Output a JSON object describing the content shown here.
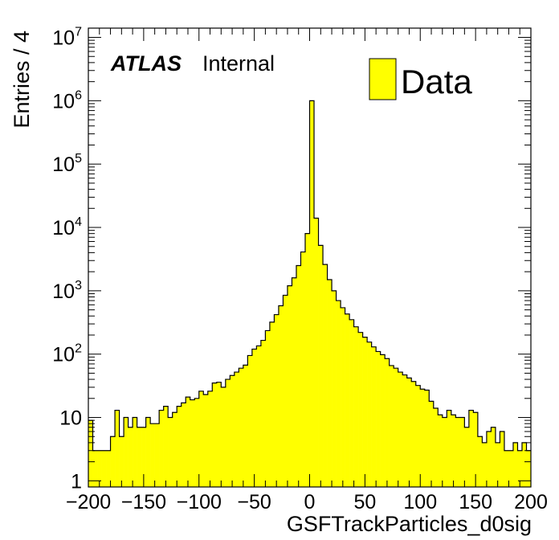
{
  "chart_data": {
    "type": "bar",
    "subtype": "histogram-step",
    "y_scale": "log",
    "xlim": [
      -200,
      200
    ],
    "ylim": [
      0.8,
      14000000
    ],
    "bin_width": 4,
    "xlabel": "GSFTrackParticles_d0sig",
    "ylabel": "Entries / 4",
    "experiment": "ATLAS",
    "experiment_status": "Internal",
    "legend": {
      "position": "top-right",
      "entries": [
        {
          "name": "Data",
          "color": "#ffff00"
        }
      ]
    },
    "fill_color": "#ffff00",
    "line_color": "#000000",
    "x_ticks": [
      -200,
      -150,
      -100,
      -50,
      0,
      50,
      100,
      150,
      200
    ],
    "x_tick_labels": [
      "−200",
      "−150",
      "−100",
      "−50",
      "0",
      "50",
      "100",
      "150",
      "200"
    ],
    "y_ticks": [
      {
        "value": 1,
        "base": "1",
        "exp": ""
      },
      {
        "value": 10,
        "base": "10",
        "exp": ""
      },
      {
        "value": 100,
        "base": "10",
        "exp": "2"
      },
      {
        "value": 1000,
        "base": "10",
        "exp": "3"
      },
      {
        "value": 10000,
        "base": "10",
        "exp": "4"
      },
      {
        "value": 100000,
        "base": "10",
        "exp": "5"
      },
      {
        "value": 1000000,
        "base": "10",
        "exp": "6"
      },
      {
        "value": 10000000,
        "base": "10",
        "exp": "7"
      }
    ],
    "series": [
      {
        "name": "Data",
        "bin_lows": [
          -200,
          -196,
          -192,
          -188,
          -184,
          -180,
          -176,
          -172,
          -168,
          -164,
          -160,
          -156,
          -152,
          -148,
          -144,
          -140,
          -136,
          -132,
          -128,
          -124,
          -120,
          -116,
          -112,
          -108,
          -104,
          -100,
          -96,
          -92,
          -88,
          -84,
          -80,
          -76,
          -72,
          -68,
          -64,
          -60,
          -56,
          -52,
          -48,
          -44,
          -40,
          -36,
          -32,
          -28,
          -24,
          -20,
          -16,
          -12,
          -8,
          -4,
          0,
          4,
          8,
          12,
          16,
          20,
          24,
          28,
          32,
          36,
          40,
          44,
          48,
          52,
          56,
          60,
          64,
          68,
          72,
          76,
          80,
          84,
          88,
          92,
          96,
          100,
          104,
          108,
          112,
          116,
          120,
          124,
          128,
          132,
          136,
          140,
          144,
          148,
          152,
          156,
          160,
          164,
          168,
          172,
          176,
          180,
          184,
          188,
          192,
          196
        ],
        "values": [
          9,
          3,
          3,
          3,
          3,
          5,
          13,
          5,
          10,
          7,
          10,
          7,
          7,
          10,
          8,
          8,
          13,
          15,
          10,
          12,
          15,
          17,
          21,
          19,
          20,
          26,
          23,
          26,
          35,
          36,
          30,
          40,
          46,
          52,
          60,
          67,
          95,
          120,
          135,
          165,
          235,
          320,
          420,
          580,
          850,
          1200,
          1600,
          2500,
          4100,
          8000,
          1000000,
          14000,
          5200,
          2600,
          1500,
          1000,
          700,
          540,
          430,
          350,
          270,
          220,
          185,
          155,
          130,
          110,
          98,
          85,
          66,
          60,
          52,
          47,
          42,
          37,
          32,
          28,
          27,
          18,
          14,
          11,
          10,
          13,
          11,
          10,
          10,
          7,
          13,
          12,
          5,
          4,
          6,
          7,
          4,
          6,
          3,
          3,
          4,
          3,
          4,
          3
        ]
      }
    ]
  }
}
